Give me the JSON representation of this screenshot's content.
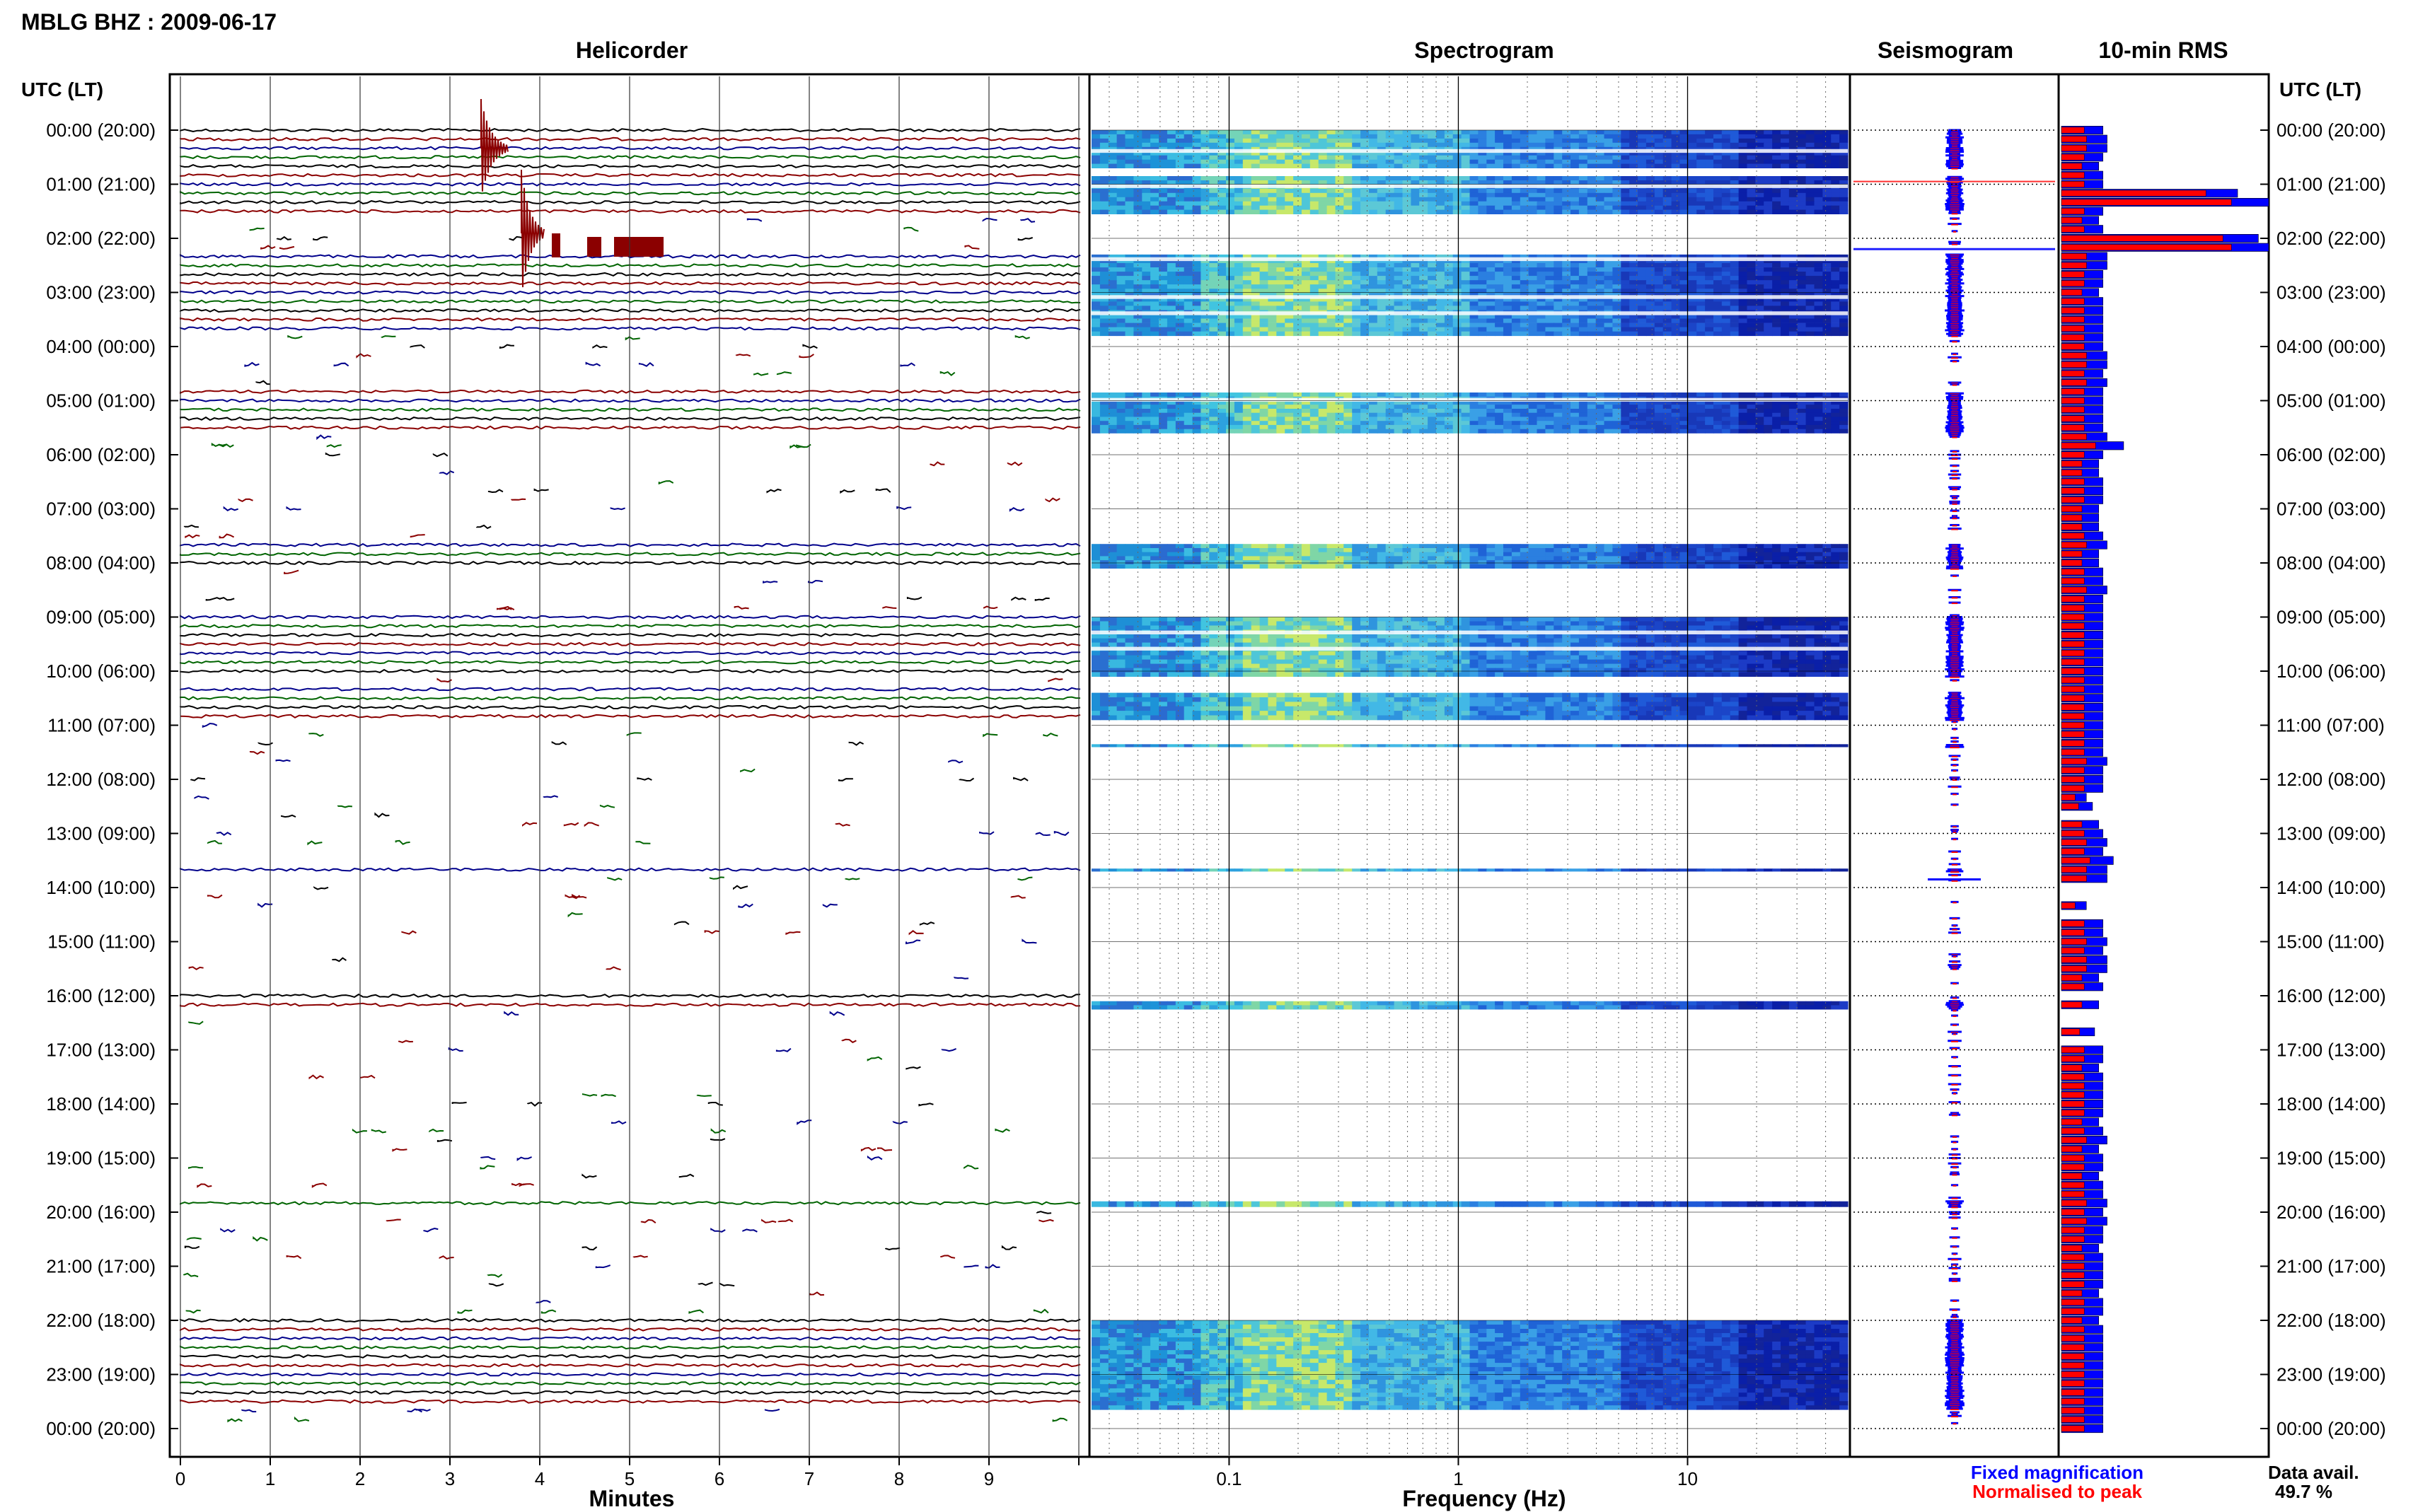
{
  "header": {
    "station_title": "MBLG BHZ : 2009-06-17",
    "panel_titles": {
      "helicorder": "Helicorder",
      "spectrogram": "Spectrogram",
      "seismogram": "Seismogram",
      "rms": "10-min RMS"
    },
    "utc_label": "UTC (LT)"
  },
  "footer": {
    "minutes_label": "Minutes",
    "frequency_label": "Frequency (Hz)",
    "legend_fixed": "Fixed magnification",
    "legend_normalised": "Normalised to peak",
    "data_avail_label": "Data avail.",
    "data_avail_value": "49.7 %"
  },
  "colors": {
    "fixed": "#0000ff",
    "normalised": "#ff0000",
    "trace_black": "#000000",
    "trace_red": "#8b0000",
    "trace_blue": "#00008b",
    "trace_green": "#006400"
  },
  "chart_data": {
    "type": "heatmap",
    "title": "MBLG BHZ : 2009-06-17",
    "hour_labels": [
      "00:00 (20:00)",
      "01:00 (21:00)",
      "02:00 (22:00)",
      "03:00 (23:00)",
      "04:00 (00:00)",
      "05:00 (01:00)",
      "06:00 (02:00)",
      "07:00 (03:00)",
      "08:00 (04:00)",
      "09:00 (05:00)",
      "10:00 (06:00)",
      "11:00 (07:00)",
      "12:00 (08:00)",
      "13:00 (09:00)",
      "14:00 (10:00)",
      "15:00 (11:00)",
      "16:00 (12:00)",
      "17:00 (13:00)",
      "18:00 (14:00)",
      "19:00 (15:00)",
      "20:00 (16:00)",
      "21:00 (17:00)",
      "22:00 (18:00)",
      "23:00 (19:00)",
      "00:00 (20:00)"
    ],
    "minute_ticks": [
      "0",
      "1",
      "2",
      "3",
      "4",
      "5",
      "6",
      "7",
      "8",
      "9"
    ],
    "frequency_ticks": [
      "0.1",
      "1",
      "10"
    ],
    "xlabel_helicorder": "Minutes",
    "xlabel_spectrogram": "Frequency (Hz)",
    "spectrogram_present_ranges_hours": [
      [
        0,
        0.7
      ],
      [
        0.85,
        1.55
      ],
      [
        2.3,
        3.8
      ],
      [
        4.85,
        5.6
      ],
      [
        7.65,
        8.1
      ],
      [
        9.0,
        10.1
      ],
      [
        10.4,
        10.9
      ],
      [
        11.35,
        11.4
      ],
      [
        13.65,
        13.7
      ],
      [
        16.1,
        16.25
      ],
      [
        19.8,
        19.9
      ],
      [
        22.0,
        23.65
      ]
    ],
    "rms_fixed_bars": [
      0.2,
      0.22,
      0.22,
      0.2,
      0.18,
      0.2,
      0.2,
      0.85,
      1.0,
      0.2,
      0.18,
      0.2,
      0.95,
      1.0,
      0.22,
      0.22,
      0.2,
      0.2,
      0.18,
      0.2,
      0.2,
      0.2,
      0.2,
      0.2,
      0.2,
      0.22,
      0.22,
      0.2,
      0.22,
      0.2,
      0.2,
      0.2,
      0.2,
      0.2,
      0.22,
      0.3,
      0.2,
      0.18,
      0.18,
      0.2,
      0.2,
      0.2,
      0.18,
      0.18,
      0.18,
      0.2,
      0.22,
      0.18,
      0.18,
      0.2,
      0.2,
      0.22,
      0.2,
      0.2,
      0.2,
      0.2,
      0.2,
      0.2,
      0.2,
      0.2,
      0.2,
      0.2,
      0.2,
      0.2,
      0.2,
      0.2,
      0.2,
      0.2,
      0.2,
      0.2,
      0.22,
      0.2,
      0.2,
      0.2,
      0.12,
      0.15,
      0,
      0.18,
      0.2,
      0.22,
      0.2,
      0.25,
      0.22,
      0.22,
      0,
      0,
      0.12,
      0,
      0.2,
      0.2,
      0.22,
      0.2,
      0.22,
      0.22,
      0.18,
      0.2,
      0,
      0.18,
      0,
      0,
      0.16,
      0,
      0.2,
      0.2,
      0.18,
      0.2,
      0.2,
      0.2,
      0.2,
      0.2,
      0.18,
      0.2,
      0.22,
      0.18,
      0.2,
      0.2,
      0.18,
      0.2,
      0.2,
      0.22,
      0.2,
      0.22,
      0.2,
      0.2,
      0.18,
      0.2,
      0.2,
      0.2,
      0.2,
      0.18,
      0.2,
      0.2,
      0.18,
      0.2,
      0.2,
      0.2,
      0.2,
      0.2,
      0.2,
      0.2,
      0.2,
      0.2,
      0.2,
      0.2,
      0.2
    ],
    "data_availability_percent": 49.7
  }
}
